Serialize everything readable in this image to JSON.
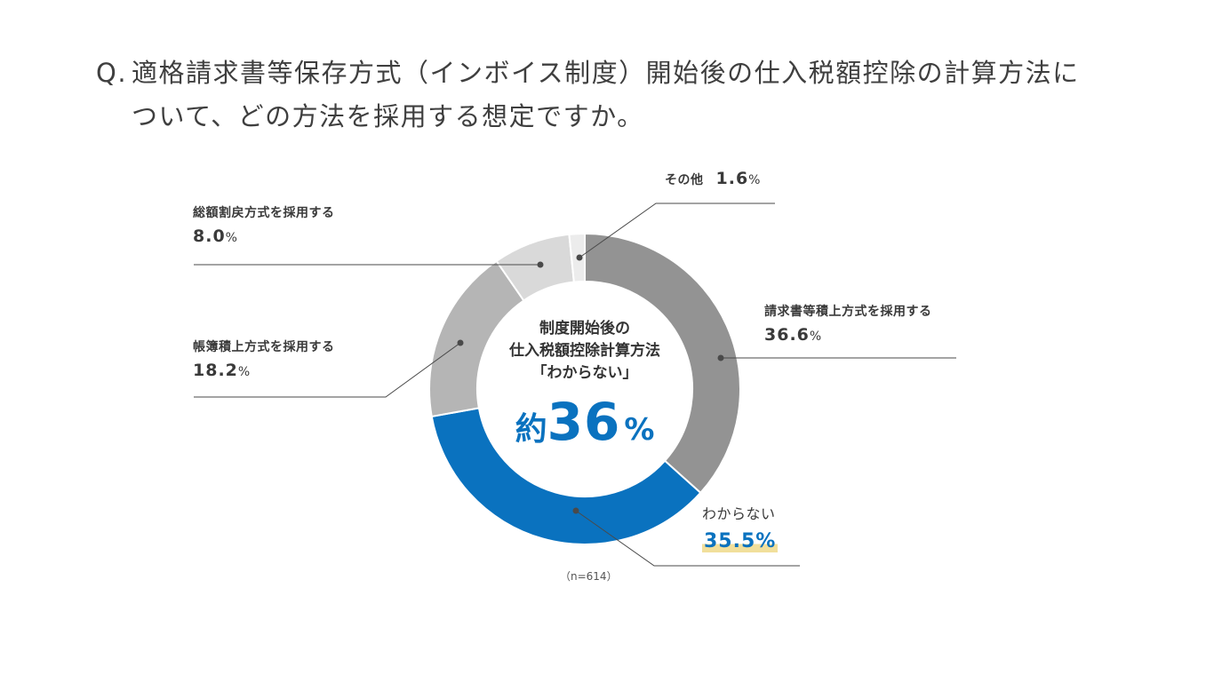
{
  "question": {
    "prefix": "Q.",
    "line1": "適格請求書等保存方式（インボイス制度）開始後の仕入税額控除の計算方法に",
    "line2": "ついて、どの方法を採用する想定ですか。"
  },
  "center": {
    "line1": "制度開始後の",
    "line2": "仕入税額控除計算方法",
    "line3": "「わからない」",
    "approx": "約",
    "value": "36",
    "unit": "%"
  },
  "note": "（n=614）",
  "labels": {
    "other": {
      "name": "その他",
      "value": "1.6",
      "unit": "%"
    },
    "sokugaku": {
      "name": "総額割戻方式を採用する",
      "value": "8.0",
      "unit": "%"
    },
    "seikyu": {
      "name": "請求書等積上方式を採用する",
      "value": "36.6",
      "unit": "%"
    },
    "chobo": {
      "name": "帳簿積上方式を採用する",
      "value": "18.2",
      "unit": "%"
    },
    "wakaranai": {
      "name": "わからない",
      "value": "35.5%"
    }
  },
  "colors": {
    "seikyu": "#939393",
    "wakaranai": "#0a72bf",
    "chobo": "#b5b5b5",
    "sokugaku": "#d9d9d9",
    "other": "#ececec",
    "highlight": "#f1df9b"
  },
  "chart_data": {
    "type": "pie",
    "donut": true,
    "start": "12 o'clock, clockwise",
    "slices": [
      {
        "label": "請求書等積上方式を採用する",
        "value": 36.6,
        "color": "#939393"
      },
      {
        "label": "わからない",
        "value": 35.5,
        "color": "#0a72bf"
      },
      {
        "label": "帳簿積上方式を採用する",
        "value": 18.2,
        "color": "#b5b5b5"
      },
      {
        "label": "総額割戻方式を採用する",
        "value": 8.0,
        "color": "#d9d9d9"
      },
      {
        "label": "その他",
        "value": 1.6,
        "color": "#ececec"
      }
    ],
    "n": 614
  }
}
